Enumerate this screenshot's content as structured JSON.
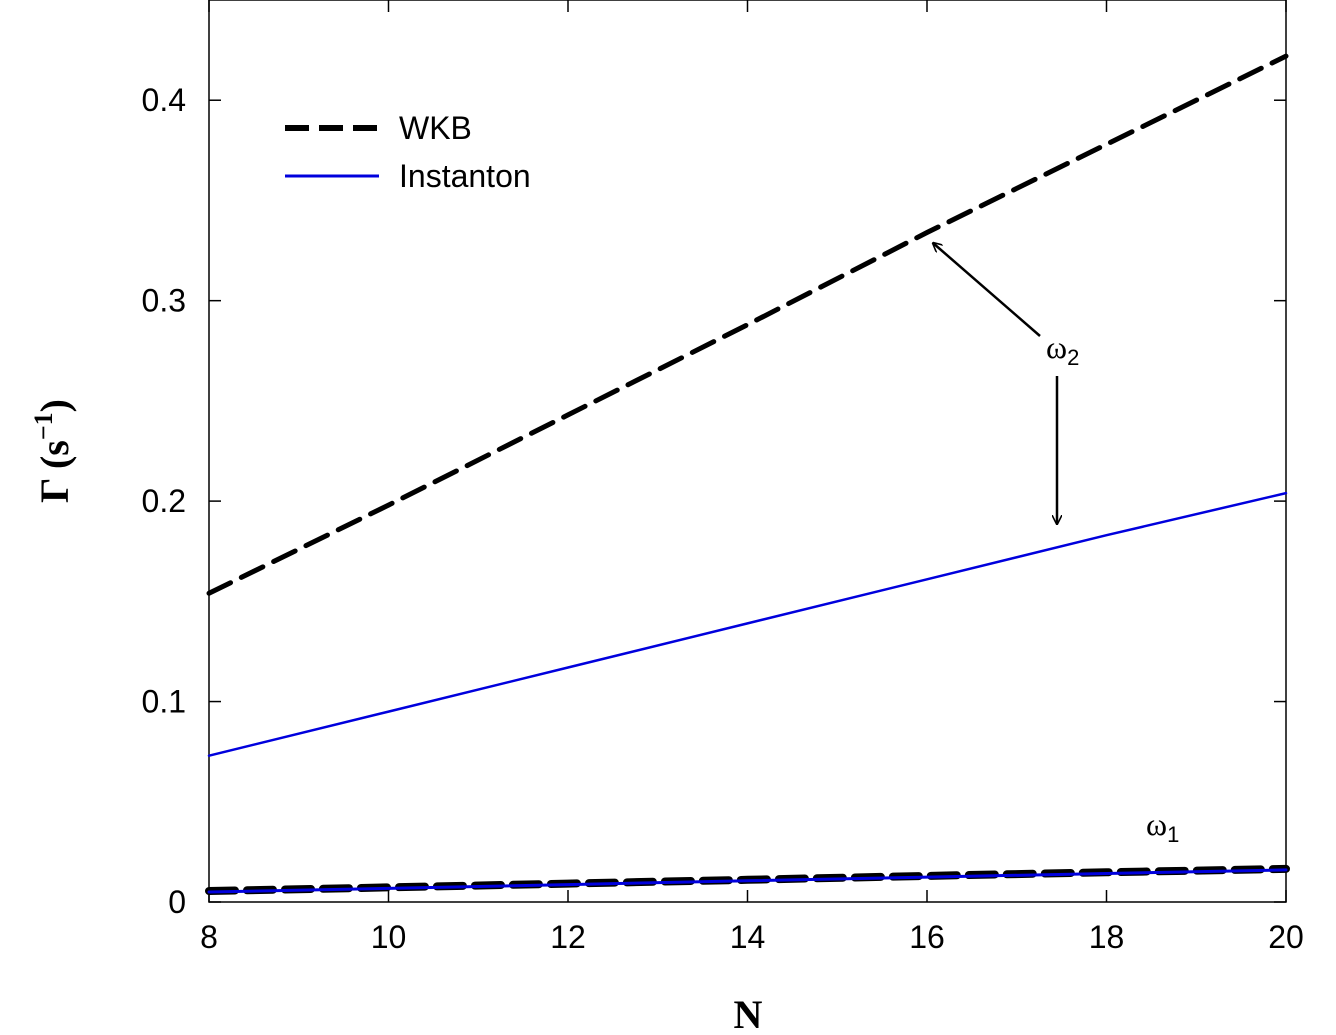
{
  "chart_data": {
    "type": "line",
    "xlabel": "N",
    "ylabel": {
      "base": "Γ (s",
      "sup": "−1",
      "close": ")"
    },
    "xlim": [
      8,
      20
    ],
    "ylim": [
      0,
      0.45
    ],
    "xticks": [
      8,
      10,
      12,
      14,
      16,
      18,
      20
    ],
    "xtick_labels": [
      "8",
      "10",
      "12",
      "14",
      "16",
      "18",
      "20"
    ],
    "yticks": [
      0,
      0.1,
      0.2,
      0.3,
      0.4
    ],
    "ytick_labels": [
      "0",
      "0.1",
      "0.2",
      "0.3",
      "0.4"
    ],
    "grid": false,
    "legend": {
      "position": "top-left",
      "entries": [
        "WKB",
        "Instanton"
      ]
    },
    "series": [
      {
        "name": "WKB",
        "group": "ω2",
        "style": "dashed",
        "color": "#000000",
        "x": [
          8,
          10,
          12,
          14,
          16,
          18,
          20
        ],
        "y": [
          0.154,
          0.198,
          0.243,
          0.288,
          0.334,
          0.378,
          0.422
        ]
      },
      {
        "name": "Instanton",
        "group": "ω2",
        "style": "solid",
        "color": "#0000dd",
        "x": [
          8,
          10,
          12,
          14,
          16,
          18,
          20
        ],
        "y": [
          0.073,
          0.095,
          0.117,
          0.139,
          0.161,
          0.183,
          0.204
        ]
      },
      {
        "name": "WKB",
        "group": "ω1",
        "style": "dashed",
        "color": "#000000",
        "x": [
          8,
          10,
          12,
          14,
          16,
          18,
          20
        ],
        "y": [
          0.0055,
          0.0073,
          0.0092,
          0.0111,
          0.013,
          0.0148,
          0.0165
        ]
      },
      {
        "name": "Instanton",
        "group": "ω1",
        "style": "solid",
        "color": "#0000dd",
        "x": [
          8,
          10,
          12,
          14,
          16,
          18,
          20
        ],
        "y": [
          0.005,
          0.0068,
          0.0087,
          0.0106,
          0.0124,
          0.0142,
          0.016
        ]
      }
    ],
    "annotations": [
      {
        "id": "omega2",
        "base": "ω",
        "sub": "2",
        "x": 17.5,
        "y": 0.274,
        "arrows": [
          {
            "to_x": 16.05,
            "to_y": 0.33
          },
          {
            "to_x": 17.5,
            "to_y": 0.187
          }
        ]
      },
      {
        "id": "omega1",
        "base": "ω",
        "sub": "1",
        "x": 19.2,
        "y": 0.033
      }
    ]
  }
}
